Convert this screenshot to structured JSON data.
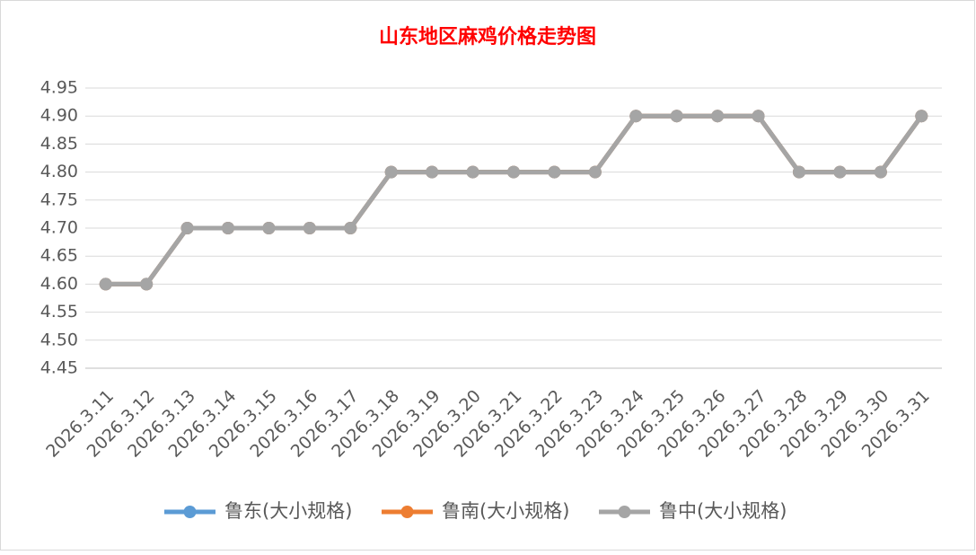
{
  "chart_data": {
    "type": "line",
    "title": "山东地区麻鸡价格走势图",
    "categories": [
      "2026.3.11",
      "2026.3.12",
      "2026.3.13",
      "2026.3.14",
      "2026.3.15",
      "2026.3.16",
      "2026.3.17",
      "2026.3.18",
      "2026.3.19",
      "2026.3.20",
      "2026.3.21",
      "2026.3.22",
      "2026.3.23",
      "2026.3.24",
      "2026.3.25",
      "2026.3.26",
      "2026.3.27",
      "2026.3.28",
      "2026.3.29",
      "2026.3.30",
      "2026.3.31"
    ],
    "series": [
      {
        "name": "鲁东(大小规格)",
        "color": "#5b9bd5",
        "values": [
          4.6,
          4.6,
          4.7,
          4.7,
          4.7,
          4.7,
          4.7,
          4.8,
          4.8,
          4.8,
          4.8,
          4.8,
          4.8,
          4.9,
          4.9,
          4.9,
          4.9,
          4.8,
          4.8,
          4.8,
          4.9
        ]
      },
      {
        "name": "鲁南(大小规格)",
        "color": "#ed7d31",
        "values": [
          4.6,
          4.6,
          4.7,
          4.7,
          4.7,
          4.7,
          4.7,
          4.8,
          4.8,
          4.8,
          4.8,
          4.8,
          4.8,
          4.9,
          4.9,
          4.9,
          4.9,
          4.8,
          4.8,
          4.8,
          4.9
        ]
      },
      {
        "name": "鲁中(大小规格)",
        "color": "#a5a5a5",
        "values": [
          4.6,
          4.6,
          4.7,
          4.7,
          4.7,
          4.7,
          4.7,
          4.8,
          4.8,
          4.8,
          4.8,
          4.8,
          4.8,
          4.9,
          4.9,
          4.9,
          4.9,
          4.8,
          4.8,
          4.8,
          4.9
        ]
      }
    ],
    "ylim": [
      4.45,
      4.95
    ],
    "yticks": [
      {
        "value": 4.45,
        "label": "4.45"
      },
      {
        "value": 4.5,
        "label": "4.50"
      },
      {
        "value": 4.55,
        "label": "4.55"
      },
      {
        "value": 4.6,
        "label": "4.60"
      },
      {
        "value": 4.65,
        "label": "4.65"
      },
      {
        "value": 4.7,
        "label": "4.70"
      },
      {
        "value": 4.75,
        "label": "4.75"
      },
      {
        "value": 4.8,
        "label": "4.80"
      },
      {
        "value": 4.85,
        "label": "4.85"
      },
      {
        "value": 4.9,
        "label": "4.90"
      },
      {
        "value": 4.95,
        "label": "4.95"
      }
    ],
    "grid": true,
    "legend": "bottom"
  }
}
